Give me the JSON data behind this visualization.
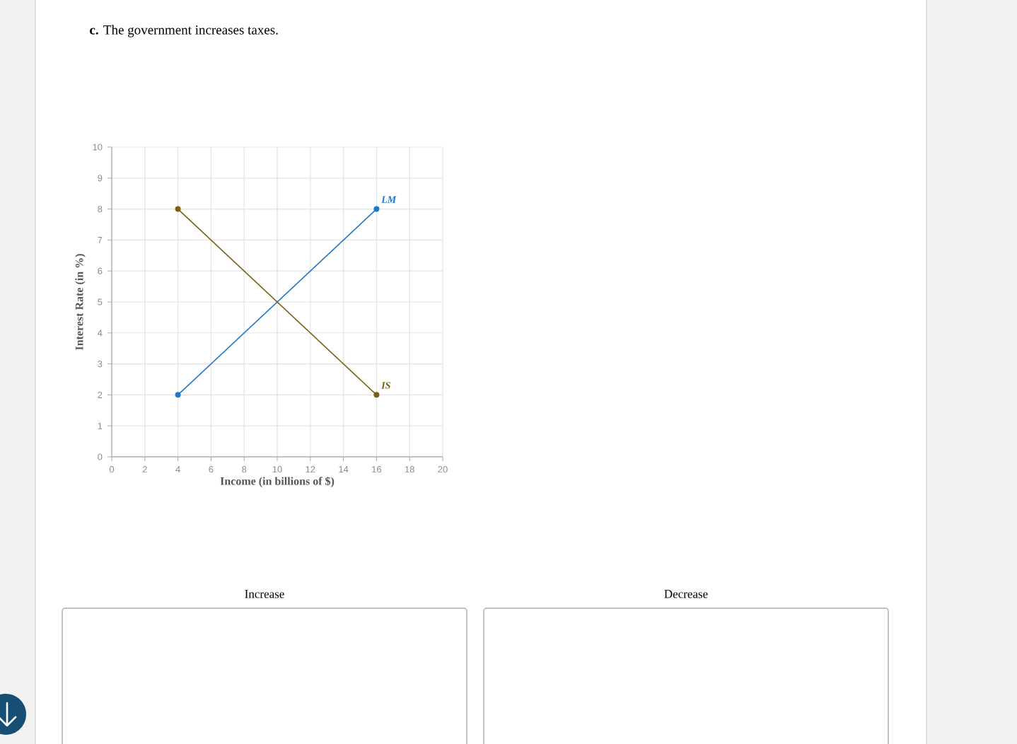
{
  "chart_data": {
    "type": "line",
    "title": "**c.** The government increases taxes.",
    "xlabel": "Income (in billions of $)",
    "ylabel": "Interest Rate (in %)",
    "x": [
      4,
      16
    ],
    "series": [
      {
        "name": "LM",
        "color": "#1f78c8",
        "values": [
          2,
          8
        ]
      },
      {
        "name": "IS",
        "color": "#7b6115",
        "values": [
          8,
          2
        ]
      }
    ],
    "xlim": [
      0,
      20
    ],
    "ylim": [
      0,
      10
    ],
    "xticks": [
      0,
      2,
      4,
      6,
      8,
      10,
      12,
      14,
      16,
      18,
      20
    ],
    "yticks": [
      0,
      1,
      2,
      3,
      4,
      5,
      6,
      7,
      8,
      9,
      10
    ],
    "grid": true,
    "marker": "circle",
    "annotations": [
      "Increase",
      "Decrease"
    ]
  }
}
